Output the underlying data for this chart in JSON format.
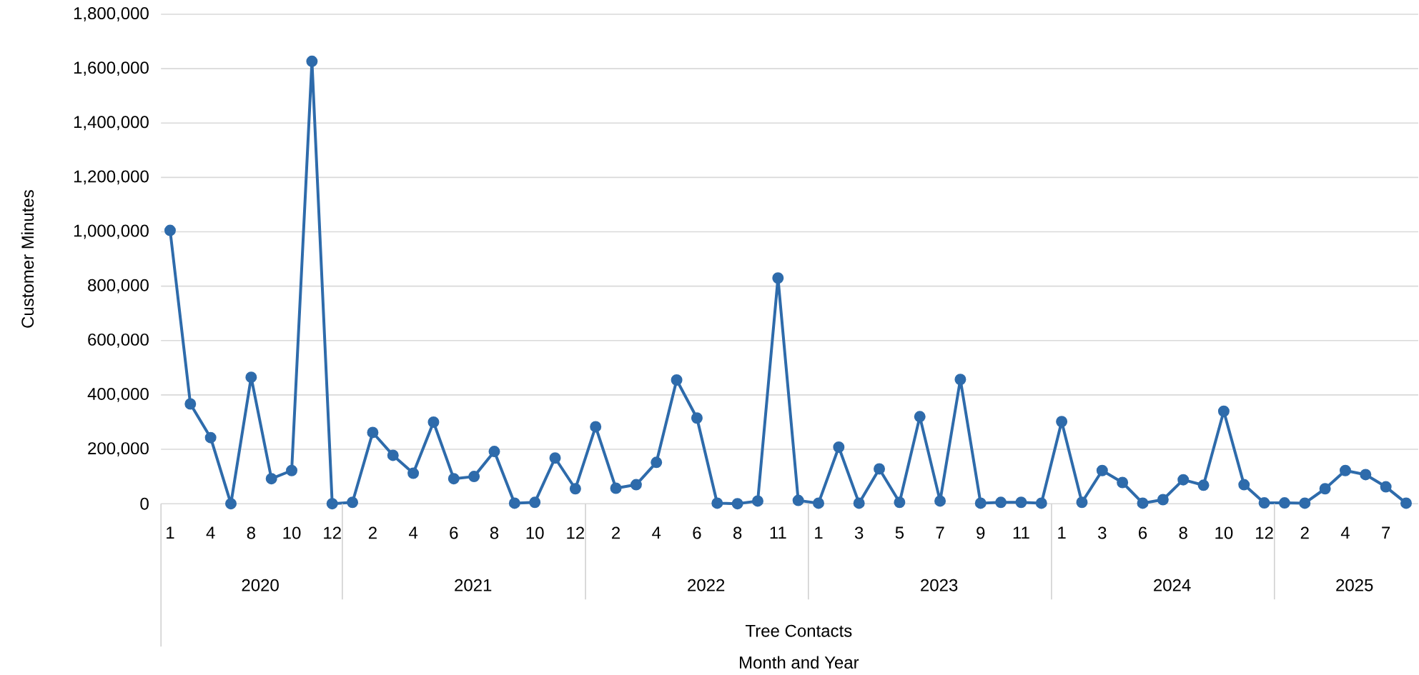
{
  "chart_data": {
    "type": "line",
    "ylabel": "Customer Minutes",
    "annotations": [
      "2020",
      "2021",
      "2022",
      "2023",
      "2024",
      "2025",
      "Tree Contacts",
      "Month and Year"
    ],
    "categories": [
      "1",
      null,
      "4",
      null,
      "8",
      null,
      "10",
      null,
      "12",
      null,
      "2",
      null,
      "4",
      null,
      "6",
      null,
      "8",
      null,
      "10",
      null,
      "12",
      null,
      "2",
      null,
      "4",
      null,
      "6",
      null,
      "8",
      null,
      "11",
      null,
      "1",
      null,
      "3",
      null,
      "5",
      null,
      "7",
      null,
      "9",
      null,
      "11",
      null,
      "1",
      null,
      "3",
      null,
      "6",
      null,
      "8",
      null,
      "10",
      null,
      "12",
      null,
      "2",
      null,
      "4",
      null,
      "7",
      null
    ],
    "series": [
      {
        "color": "#2e6bab",
        "values": [
          1005000,
          367000,
          243000,
          0,
          465000,
          92000,
          122000,
          1627000,
          0,
          5000,
          262000,
          178000,
          112000,
          300000,
          92000,
          100000,
          192000,
          2000,
          5000,
          168000,
          55000,
          283000,
          57000,
          70000,
          152000,
          455000,
          315000,
          2000,
          0,
          10000,
          830000,
          12000,
          2000,
          208000,
          2000,
          128000,
          5000,
          320000,
          10000,
          457000,
          2000,
          5000,
          5000,
          2000,
          302000,
          5000,
          122000,
          78000,
          2000,
          15000,
          88000,
          68000,
          340000,
          70000,
          3000,
          3000,
          2000,
          55000,
          122000,
          107000,
          62000,
          2000
        ]
      }
    ],
    "ylim": [
      0,
      1800000
    ],
    "yticks": [
      {
        "value": 0,
        "label": "0"
      },
      {
        "value": 200000,
        "label": "200,000"
      },
      {
        "value": 400000,
        "label": "400,000"
      },
      {
        "value": 600000,
        "label": "600,000"
      },
      {
        "value": 800000,
        "label": "800,000"
      },
      {
        "value": 1000000,
        "label": "1,000,000"
      },
      {
        "value": 1200000,
        "label": "1,200,000"
      },
      {
        "value": 1400000,
        "label": "1,400,000"
      },
      {
        "value": 1600000,
        "label": "1,600,000"
      },
      {
        "value": 1800000,
        "label": "1,800,000"
      }
    ],
    "grid": "y",
    "marker": "circle",
    "line_style": "solid"
  }
}
